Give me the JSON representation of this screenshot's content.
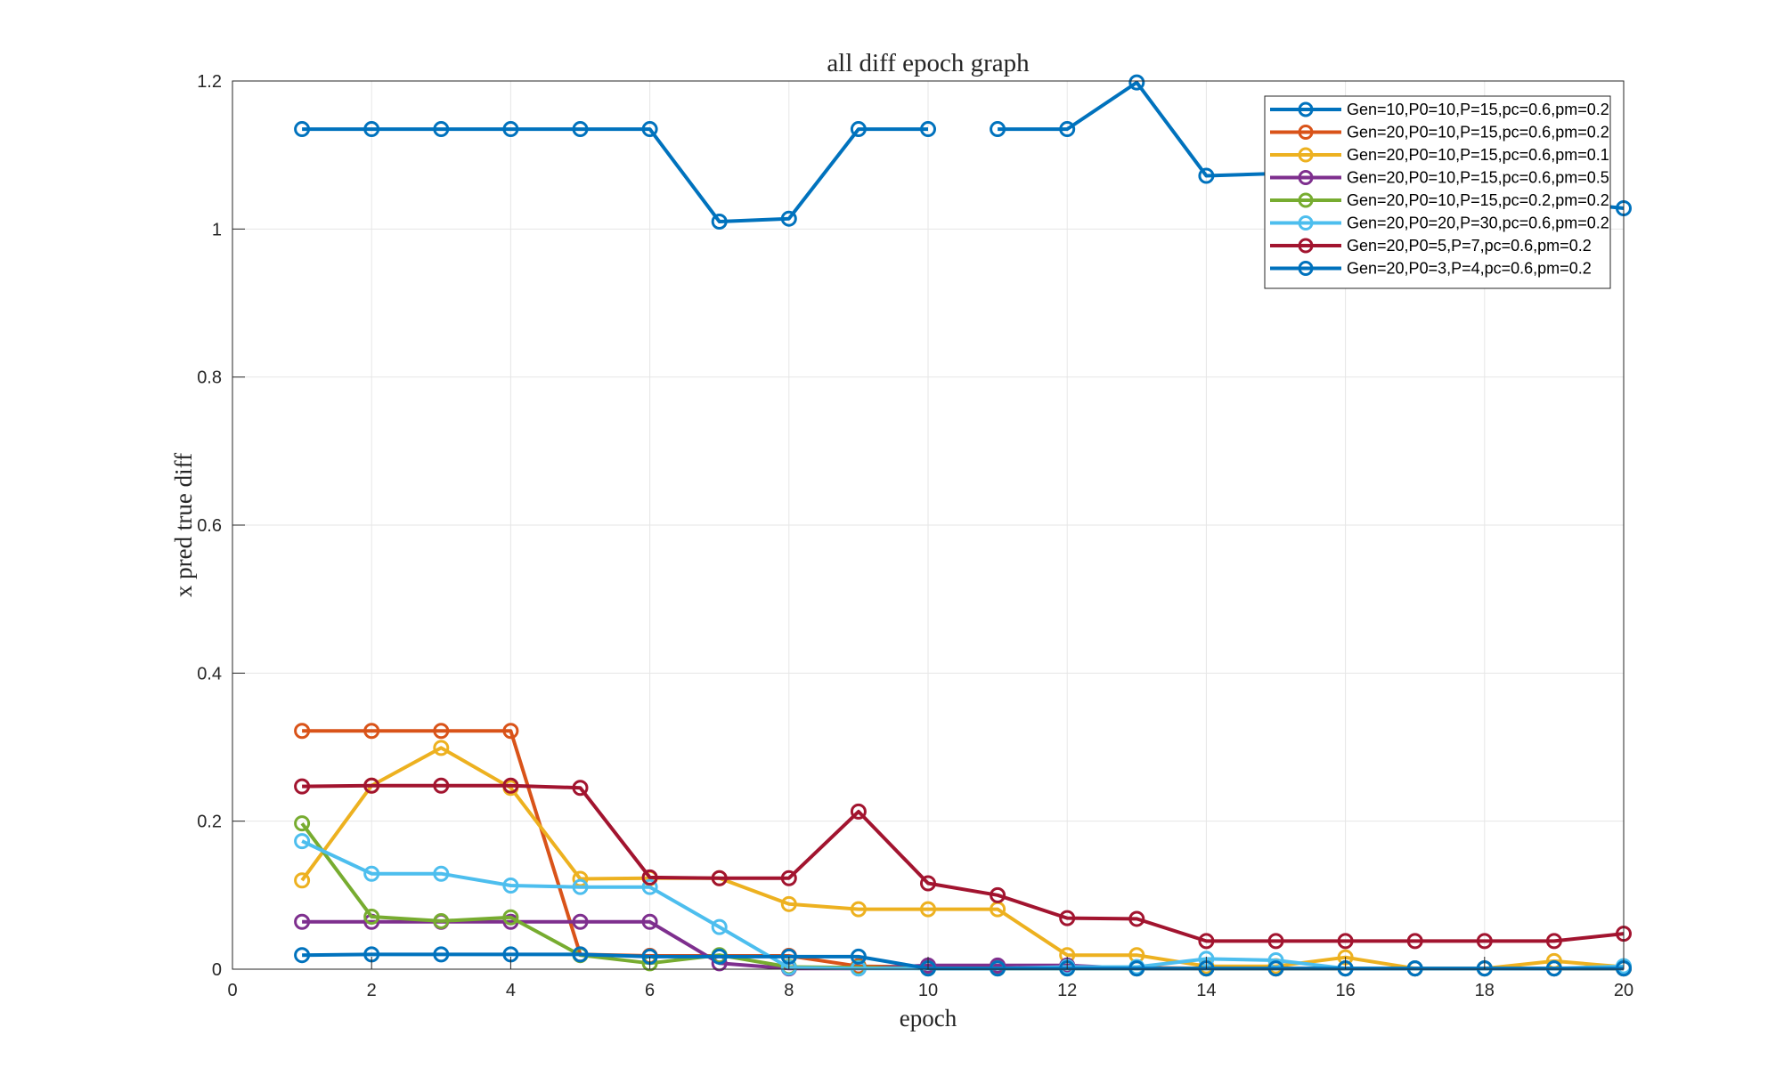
{
  "chart_data": {
    "type": "line",
    "title": "all diff epoch graph",
    "xlabel": "epoch",
    "ylabel": "x pred true diff",
    "xlim": [
      0,
      20
    ],
    "ylim": [
      0,
      1.2
    ],
    "xticks": [
      0,
      2,
      4,
      6,
      8,
      10,
      12,
      14,
      16,
      18,
      20
    ],
    "yticks": [
      0,
      0.2,
      0.4,
      0.6,
      0.8,
      1,
      1.2
    ],
    "ytick_labels": [
      "0",
      "0.2",
      "0.4",
      "0.6",
      "0.8",
      "1",
      "1.2"
    ],
    "grid": true,
    "legend_position": "top-right",
    "x": [
      1,
      2,
      3,
      4,
      5,
      6,
      7,
      8,
      9,
      10,
      11,
      12,
      13,
      14,
      15,
      16,
      17,
      18,
      19,
      20
    ],
    "series": [
      {
        "name": "Gen=10,P0=10,P=15,pc=0.6,pm=0.2",
        "color": "#0072BD",
        "x": [
          1,
          2,
          3,
          4,
          5,
          6,
          7,
          8,
          9,
          10
        ],
        "values": [
          1.135,
          1.135,
          1.135,
          1.135,
          1.135,
          1.135,
          1.01,
          1.014,
          1.135,
          1.135
        ]
      },
      {
        "name": "Gen=20,P0=10,P=15,pc=0.6,pm=0.2",
        "color": "#D95319",
        "values": [
          0.322,
          0.322,
          0.322,
          0.322,
          0.02,
          0.018,
          0.018,
          0.018,
          0.004,
          0.003,
          0.003,
          0.002,
          0.002,
          0.001,
          0.001,
          0.001,
          0.001,
          0.001,
          0.001,
          0.001
        ]
      },
      {
        "name": "Gen=20,P0=10,P=15,pc=0.6,pm=0.1",
        "color": "#EDB120",
        "values": [
          0.12,
          0.248,
          0.299,
          0.245,
          0.122,
          0.123,
          0.123,
          0.088,
          0.081,
          0.081,
          0.081,
          0.019,
          0.019,
          0.004,
          0.004,
          0.016,
          0.001,
          0.001,
          0.011,
          0.003
        ]
      },
      {
        "name": "Gen=20,P0=10,P=15,pc=0.6,pm=0.5",
        "color": "#7E2F8E",
        "values": [
          0.064,
          0.064,
          0.064,
          0.064,
          0.064,
          0.064,
          0.008,
          0.001,
          0.001,
          0.005,
          0.005,
          0.005,
          0.001,
          0.001,
          0.001,
          0.001,
          0.001,
          0.001,
          0.001,
          0.001
        ]
      },
      {
        "name": "Gen=20,P0=10,P=15,pc=0.2,pm=0.2",
        "color": "#77AC30",
        "values": [
          0.197,
          0.071,
          0.065,
          0.07,
          0.019,
          0.008,
          0.019,
          0.003,
          0.002,
          0.001,
          0.001,
          0.001,
          0.001,
          0.001,
          0.001,
          0.001,
          0.001,
          0.001,
          0.001,
          0.001
        ]
      },
      {
        "name": "Gen=20,P0=20,P=30,pc=0.6,pm=0.2",
        "color": "#4DBEEE",
        "values": [
          0.173,
          0.129,
          0.129,
          0.113,
          0.111,
          0.111,
          0.057,
          0.002,
          0.001,
          0.001,
          0.001,
          0.003,
          0.003,
          0.014,
          0.012,
          0.001,
          0.001,
          0.001,
          0.001,
          0.004
        ]
      },
      {
        "name": "Gen=20,P0=5,P=7,pc=0.6,pm=0.2",
        "color": "#A2142F",
        "values": [
          0.247,
          0.248,
          0.248,
          0.248,
          0.245,
          0.124,
          0.123,
          0.123,
          0.213,
          0.116,
          0.1,
          0.069,
          0.068,
          0.038,
          0.038,
          0.038,
          0.038,
          0.038,
          0.038,
          0.048
        ]
      },
      {
        "name": "Gen=20,P0=3,P=4,pc=0.6,pm=0.2",
        "color": "#0072BD",
        "values": [
          0.019,
          0.02,
          0.02,
          0.02,
          0.02,
          0.017,
          0.017,
          0.017,
          0.017,
          0.001,
          0.001,
          0.001,
          0.001,
          0.001,
          0.001,
          0.001,
          0.001,
          0.001,
          0.001,
          0.001
        ],
        "extra": [
          {
            "x": 11,
            "y": 1.135
          },
          {
            "x": 12,
            "y": 1.135
          },
          {
            "x": 13,
            "y": 1.198
          },
          {
            "x": 14,
            "y": 1.072
          },
          {
            "x": 15,
            "y": 1.075
          },
          {
            "x": 20,
            "y": 1.028
          }
        ]
      }
    ]
  }
}
